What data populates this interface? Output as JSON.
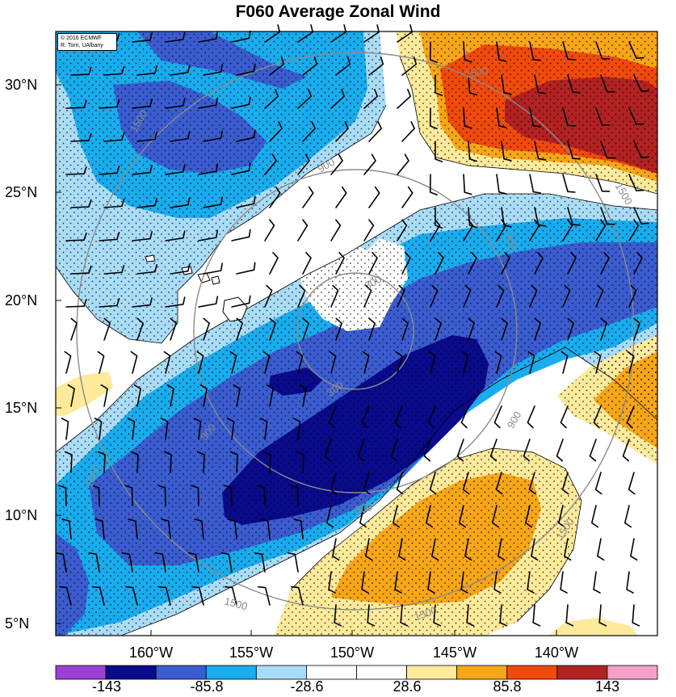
{
  "title": "F060 Average Zonal Wind",
  "credit": {
    "line1": "© 2016 ECMWF",
    "line2": "R. Torn, UAlbany"
  },
  "axes": {
    "lat_labels": [
      "30°N",
      "25°N",
      "20°N",
      "15°N",
      "10°N",
      "5°N"
    ],
    "lon_labels": [
      "160°W",
      "155°W",
      "150°W",
      "145°W",
      "140°W"
    ]
  },
  "radius_rings": {
    "labels": [
      "300",
      "900",
      "1500"
    ],
    "color": "#8c8c8c"
  },
  "colorbar": {
    "tick_labels": [
      "-143",
      "-85.8",
      "-28.6",
      "28.6",
      "85.8",
      "143"
    ],
    "colors": [
      "#9c3fd6",
      "#0a0a8c",
      "#3a5cd0",
      "#19acee",
      "#a9dcf7",
      "#ffffff",
      "#ffffff",
      "#fdea9b",
      "#f7a618",
      "#f04a0c",
      "#b22222",
      "#f5a0c8"
    ]
  }
}
